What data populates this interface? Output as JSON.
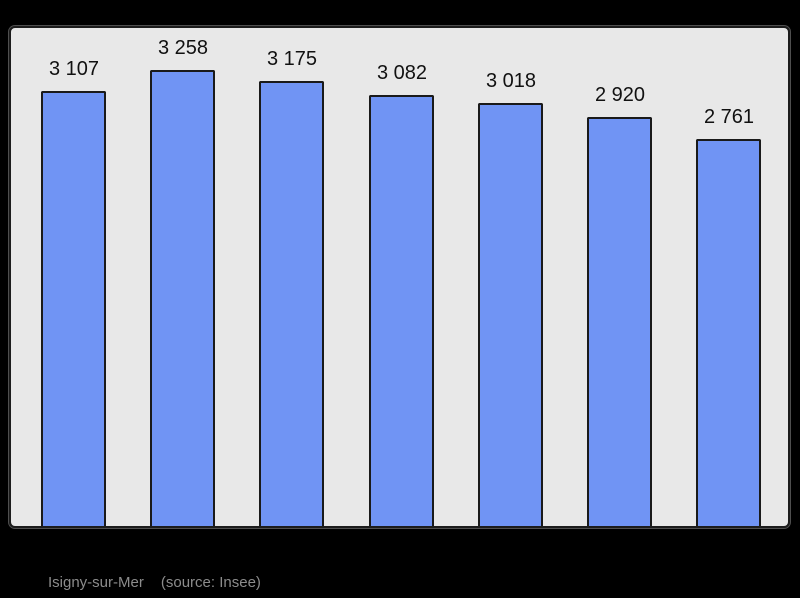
{
  "chart_data": {
    "type": "bar",
    "title": "",
    "xlabel": "",
    "ylabel": "",
    "categories": [
      "",
      "",
      "",
      "",
      "",
      "",
      ""
    ],
    "values": [
      3107,
      3258,
      3175,
      3082,
      3018,
      2920,
      2761
    ],
    "value_labels": [
      "3 107",
      "3 258",
      "3 175",
      "3 082",
      "3 018",
      "2 920",
      "2 761"
    ],
    "ylim": [
      0,
      3586
    ],
    "grid": "off",
    "legend": "none",
    "bar_value_labels_position": "above-bars"
  },
  "caption": {
    "place": "Isigny-sur-Mer",
    "source": "(source: Insee)"
  },
  "colors": {
    "page_bg": "#000000",
    "panel_bg": "#e8e8e8",
    "panel_border": "#1c1c1c",
    "bar_fill": "#7094f4",
    "bar_border": "#1a1a1a",
    "label_color": "#111111",
    "caption_color": "#8c8c8c"
  }
}
